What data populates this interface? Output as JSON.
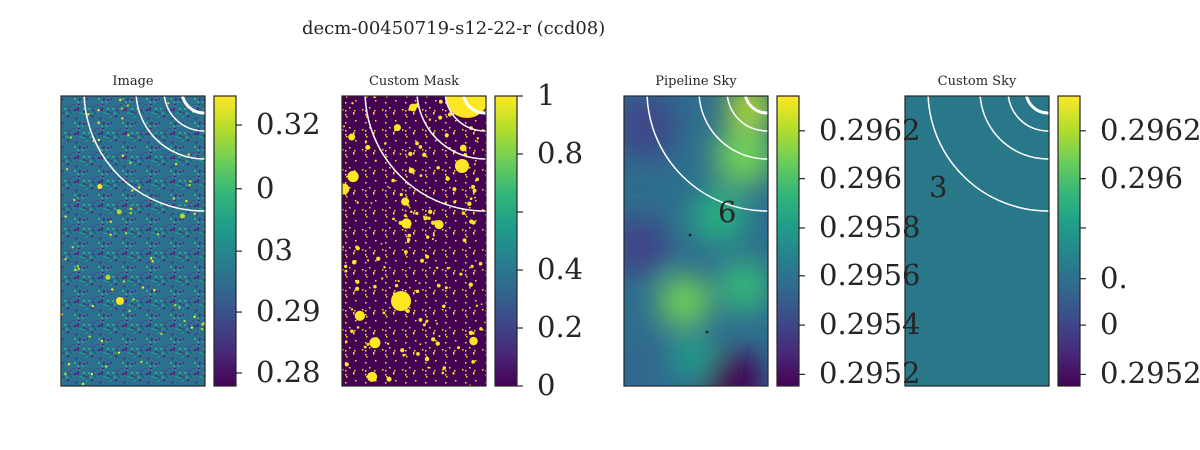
{
  "figure": {
    "suptitle": "decm-00450719-s12-22-r (ccd08)"
  },
  "chart_data": [
    {
      "type": "heatmap",
      "title": "Image",
      "colormap": "viridis",
      "description_kind": "pixel noise image",
      "colorbar": {
        "ticks": [
          {
            "label": "0.32",
            "frac": 0.9
          },
          {
            "label": "0",
            "frac": 0.68
          },
          {
            "label": "03",
            "frac": 0.465
          },
          {
            "label": "0.29",
            "frac": 0.255
          },
          {
            "label": "0.28",
            "frac": 0.045
          }
        ]
      },
      "overlay_labels": []
    },
    {
      "type": "heatmap",
      "title": "Custom Mask",
      "colormap": "viridis",
      "description_kind": "binary mask",
      "colorbar": {
        "ticks": [
          {
            "label": "1",
            "frac": 1.0
          },
          {
            "label": "0.8",
            "frac": 0.8
          },
          {
            "label": "",
            "frac": 0.6
          },
          {
            "label": "0.4",
            "frac": 0.4
          },
          {
            "label": "0.2",
            "frac": 0.2
          },
          {
            "label": "0",
            "frac": 0.0
          }
        ]
      },
      "overlay_labels": []
    },
    {
      "type": "heatmap",
      "title": "Pipeline Sky",
      "colormap": "viridis",
      "description_kind": "smooth sky model",
      "colorbar": {
        "ticks": [
          {
            "label": "0.2962",
            "frac": 0.88
          },
          {
            "label": "0.296",
            "frac": 0.715
          },
          {
            "label": "0.2958",
            "frac": 0.545
          },
          {
            "label": "0.2956",
            "frac": 0.38
          },
          {
            "label": "0.2954",
            "frac": 0.21
          },
          {
            "label": "0.2952",
            "frac": 0.04
          }
        ]
      },
      "overlay_labels": [
        {
          "text": "6"
        }
      ]
    },
    {
      "type": "heatmap",
      "title": "Custom Sky",
      "colormap": "viridis",
      "description_kind": "constant sky",
      "colorbar": {
        "ticks": [
          {
            "label": "0.2962",
            "frac": 0.88
          },
          {
            "label": "0.296",
            "frac": 0.715
          },
          {
            "label": "",
            "frac": 0.545
          },
          {
            "label": "0.",
            "frac": 0.37
          },
          {
            "label": "0",
            "frac": 0.21
          },
          {
            "label": "0.2952",
            "frac": 0.04
          }
        ]
      },
      "overlay_labels": [
        {
          "text": "3"
        }
      ]
    }
  ],
  "colors": {
    "viridis_low": "#440154",
    "viridis_mid": "#21918c",
    "viridis_high": "#fde725",
    "mask_bg": "#440154",
    "mask_fg": "#fde725",
    "custom_sky_fill": "#28788a",
    "axes_frame": "#262626",
    "circle_stroke": "#ffffff"
  }
}
